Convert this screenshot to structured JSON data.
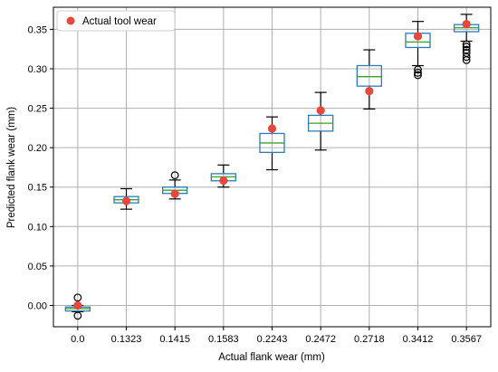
{
  "chart_data": {
    "type": "box",
    "xlabel": "Actual flank wear (mm)",
    "ylabel": "Predicted flank wear (mm)",
    "ylim": [
      -0.027,
      0.378
    ],
    "yticks": [
      "0.00",
      "0.05",
      "0.10",
      "0.15",
      "0.20",
      "0.25",
      "0.30",
      "0.35"
    ],
    "grid": true,
    "legend": {
      "position": "top-left",
      "entries": [
        {
          "label": "Actual tool wear",
          "color": "#e8473a",
          "marker": "circle"
        }
      ]
    },
    "categories": [
      "0.0",
      "0.1323",
      "0.1415",
      "0.1583",
      "0.2243",
      "0.2472",
      "0.2718",
      "0.3412",
      "0.3567"
    ],
    "boxes": [
      {
        "q1": -0.007,
        "median": -0.004,
        "q3": -0.002,
        "whisker_low": -0.008,
        "whisker_high": 0.0,
        "fliers": [
          0.01,
          -0.013
        ]
      },
      {
        "q1": 0.13,
        "median": 0.134,
        "q3": 0.138,
        "whisker_low": 0.122,
        "whisker_high": 0.148,
        "fliers": []
      },
      {
        "q1": 0.142,
        "median": 0.146,
        "q3": 0.15,
        "whisker_low": 0.135,
        "whisker_high": 0.159,
        "fliers": [
          0.165
        ]
      },
      {
        "q1": 0.158,
        "median": 0.163,
        "q3": 0.167,
        "whisker_low": 0.15,
        "whisker_high": 0.178,
        "fliers": []
      },
      {
        "q1": 0.194,
        "median": 0.206,
        "q3": 0.218,
        "whisker_low": 0.172,
        "whisker_high": 0.239,
        "fliers": []
      },
      {
        "q1": 0.221,
        "median": 0.231,
        "q3": 0.241,
        "whisker_low": 0.197,
        "whisker_high": 0.27,
        "fliers": []
      },
      {
        "q1": 0.278,
        "median": 0.29,
        "q3": 0.304,
        "whisker_low": 0.249,
        "whisker_high": 0.324,
        "fliers": []
      },
      {
        "q1": 0.327,
        "median": 0.334,
        "q3": 0.345,
        "whisker_low": 0.304,
        "whisker_high": 0.36,
        "fliers": [
          0.299,
          0.295,
          0.292
        ]
      },
      {
        "q1": 0.347,
        "median": 0.352,
        "q3": 0.356,
        "whisker_low": 0.335,
        "whisker_high": 0.369,
        "fliers": [
          0.331,
          0.328,
          0.324,
          0.32,
          0.315,
          0.311
        ]
      }
    ],
    "actual_points": [
      0.0,
      0.1323,
      0.1415,
      0.1583,
      0.2243,
      0.2472,
      0.2718,
      0.3412,
      0.3567
    ],
    "colors": {
      "box": "#2b7bba",
      "median": "#3aa02c",
      "whisker": "#000000",
      "flier": "#000000",
      "actual": "#e8473a",
      "grid": "#b0b0b0"
    }
  }
}
